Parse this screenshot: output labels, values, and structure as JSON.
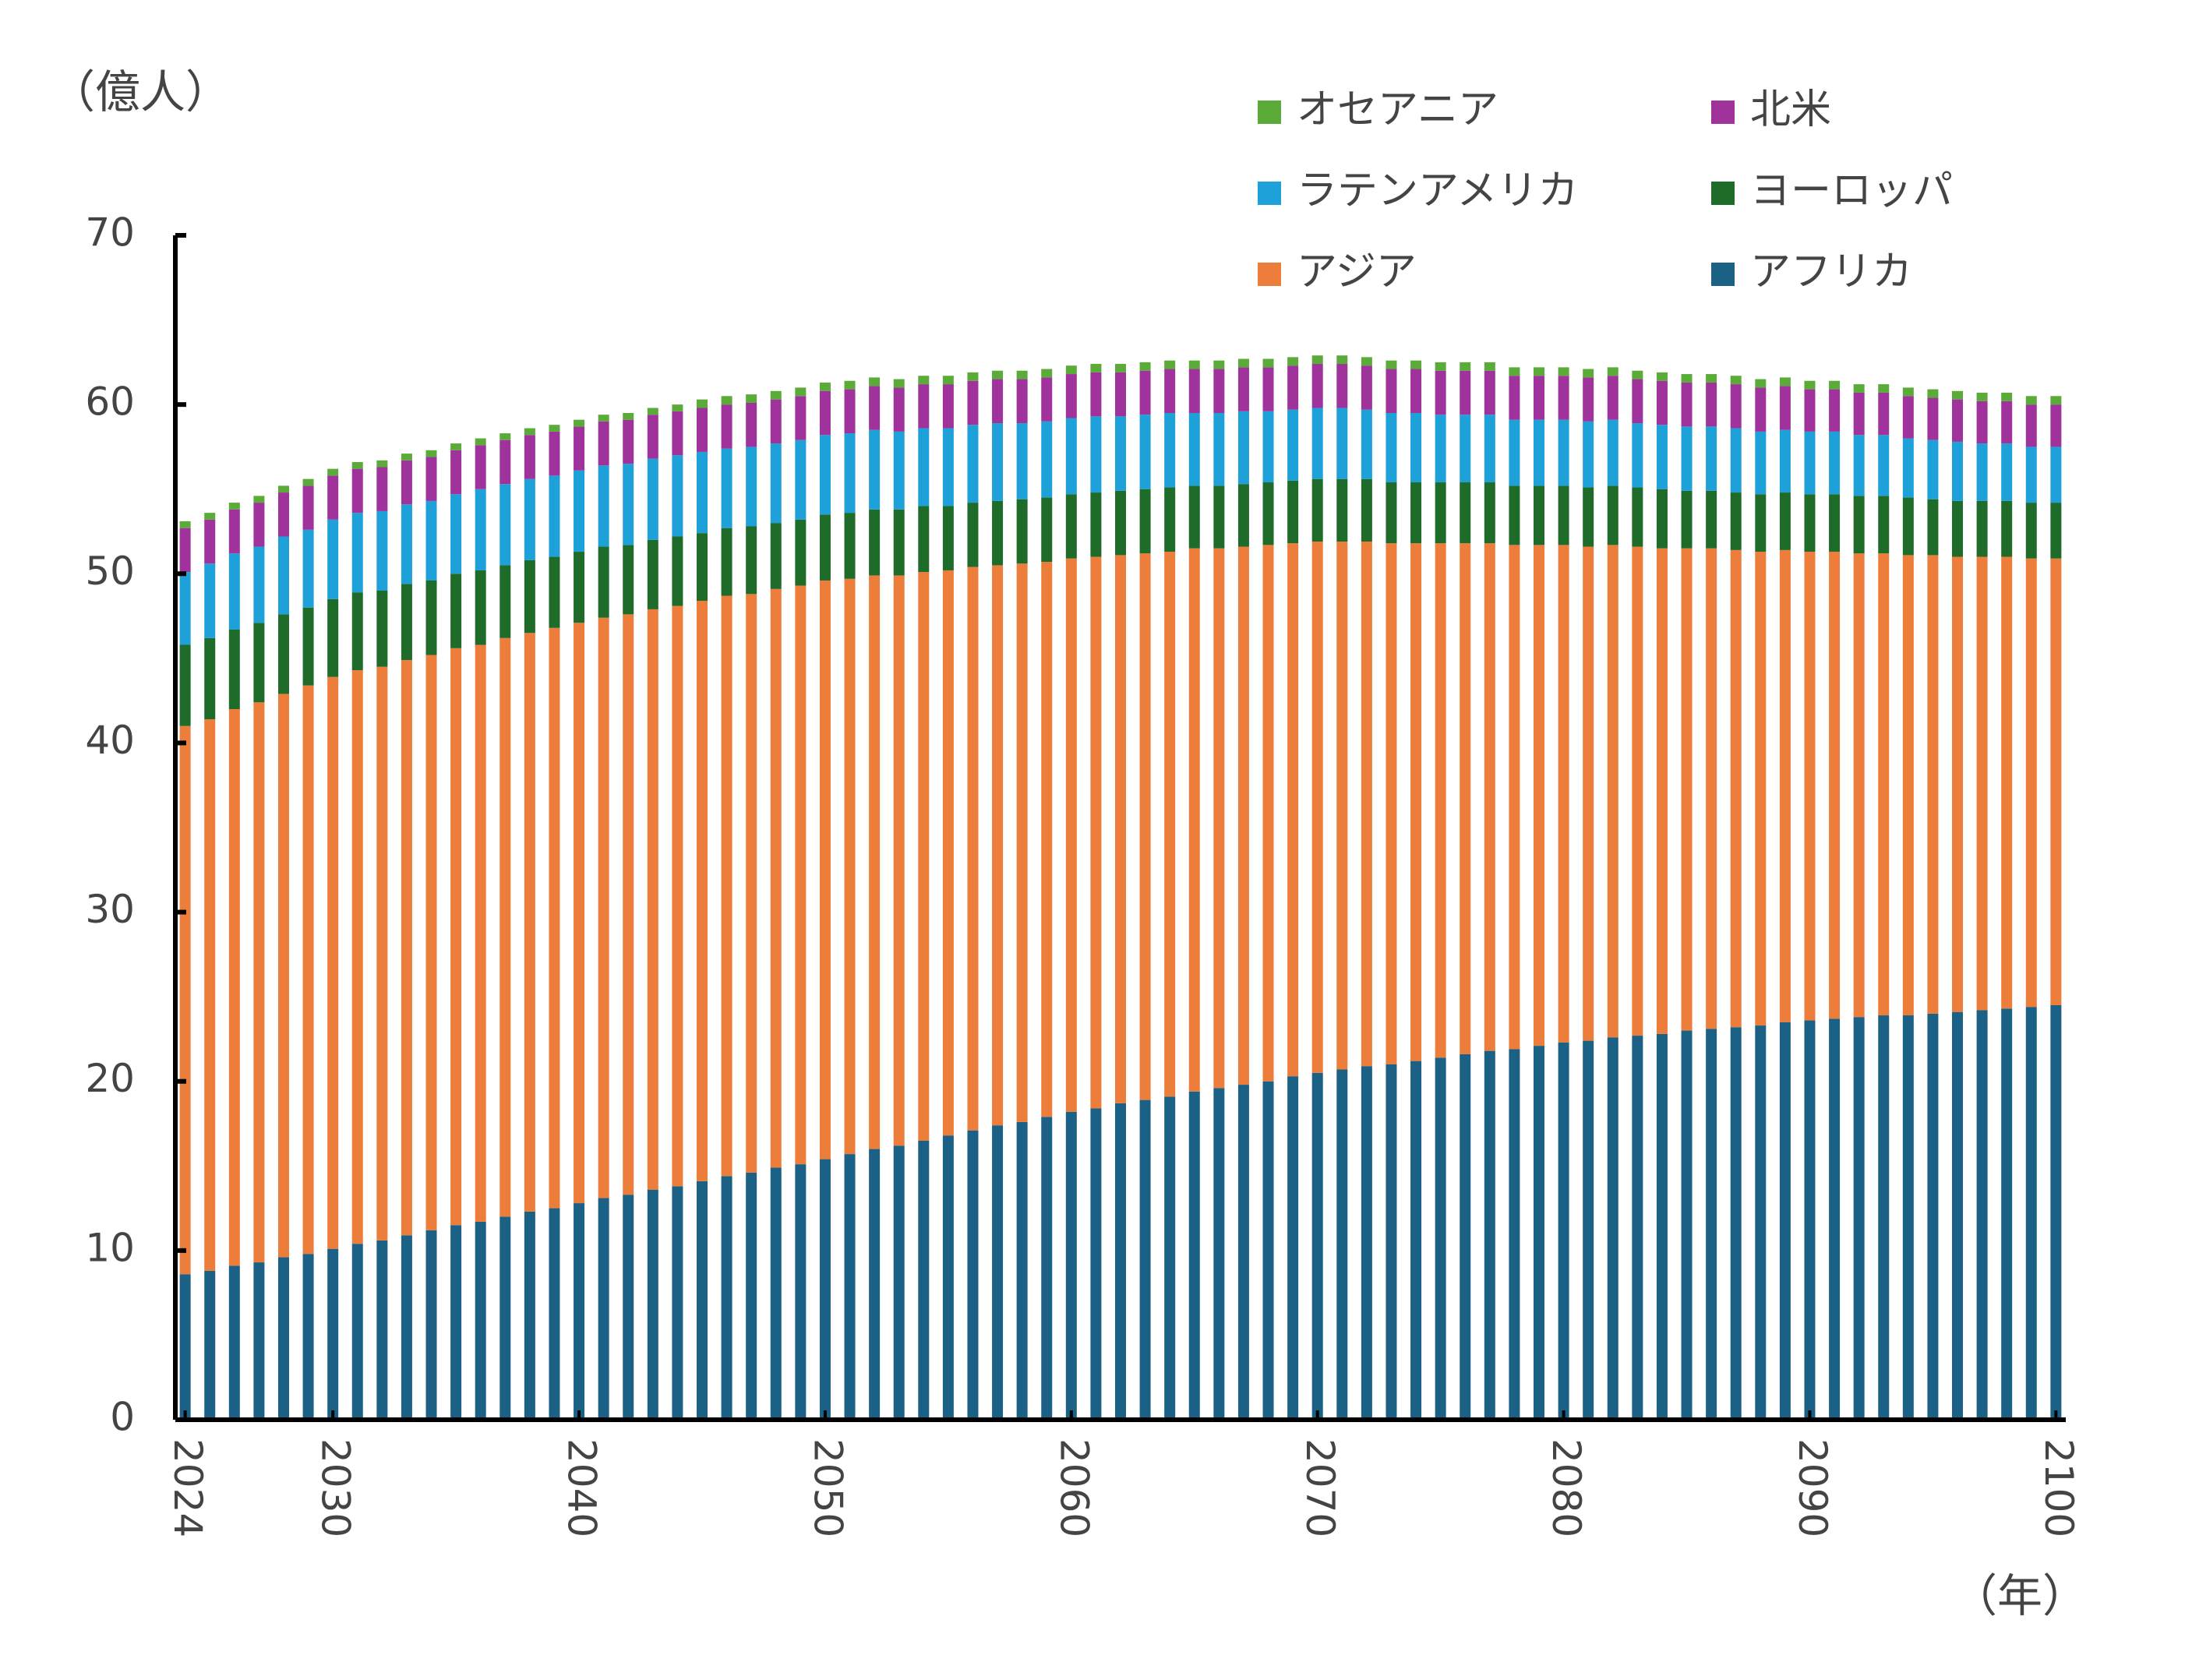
{
  "chart_data": {
    "type": "stacked_bar",
    "y_unit": "（億人）",
    "x_unit": "（年）",
    "x": [
      2024,
      2025,
      2026,
      2027,
      2028,
      2029,
      2030,
      2031,
      2032,
      2033,
      2034,
      2035,
      2036,
      2037,
      2038,
      2039,
      2040,
      2041,
      2042,
      2043,
      2044,
      2045,
      2046,
      2047,
      2048,
      2049,
      2050,
      2051,
      2052,
      2053,
      2054,
      2055,
      2056,
      2057,
      2058,
      2059,
      2060,
      2061,
      2062,
      2063,
      2064,
      2065,
      2066,
      2067,
      2068,
      2069,
      2070,
      2071,
      2072,
      2073,
      2074,
      2075,
      2076,
      2077,
      2078,
      2079,
      2080,
      2081,
      2082,
      2083,
      2084,
      2085,
      2086,
      2087,
      2088,
      2089,
      2090,
      2091,
      2092,
      2093,
      2094,
      2095,
      2096,
      2097,
      2098,
      2099,
      2100
    ],
    "xlim": [
      2023.6,
      2100.4
    ],
    "xticks": [
      2024,
      2030,
      2040,
      2050,
      2060,
      2070,
      2080,
      2090,
      2100
    ],
    "ylim": [
      0,
      70
    ],
    "yticks": [
      0,
      10,
      20,
      30,
      40,
      50,
      60,
      70
    ],
    "series": [
      {
        "name": "アフリカ",
        "color": "#1a6185",
        "values": [
          8.6,
          8.8,
          9.1,
          9.3,
          9.6,
          9.8,
          10.1,
          10.4,
          10.6,
          10.9,
          11.2,
          11.5,
          11.7,
          12.0,
          12.3,
          12.5,
          12.8,
          13.1,
          13.3,
          13.6,
          13.8,
          14.1,
          14.4,
          14.6,
          14.9,
          15.1,
          15.4,
          15.7,
          16.0,
          16.2,
          16.5,
          16.8,
          17.1,
          17.4,
          17.6,
          17.9,
          18.2,
          18.4,
          18.7,
          18.9,
          19.1,
          19.4,
          19.6,
          19.8,
          20.0,
          20.3,
          20.5,
          20.7,
          20.9,
          21.0,
          21.2,
          21.4,
          21.6,
          21.8,
          21.9,
          22.1,
          22.3,
          22.4,
          22.6,
          22.7,
          22.8,
          23.0,
          23.1,
          23.2,
          23.3,
          23.5,
          23.6,
          23.7,
          23.8,
          23.9,
          23.9,
          24.0,
          24.1,
          24.2,
          24.3,
          24.4,
          24.5
        ]
      },
      {
        "name": "アジア",
        "color": "#ed7d3a",
        "values": [
          32.4,
          32.6,
          32.9,
          33.1,
          33.3,
          33.6,
          33.8,
          33.9,
          33.9,
          34.0,
          34.0,
          34.1,
          34.1,
          34.2,
          34.2,
          34.3,
          34.3,
          34.3,
          34.3,
          34.3,
          34.3,
          34.3,
          34.3,
          34.2,
          34.2,
          34.2,
          34.2,
          34.0,
          33.9,
          33.7,
          33.6,
          33.4,
          33.3,
          33.1,
          33.0,
          32.8,
          32.7,
          32.6,
          32.4,
          32.3,
          32.2,
          32.1,
          31.9,
          31.8,
          31.7,
          31.5,
          31.4,
          31.2,
          31.0,
          30.8,
          30.6,
          30.4,
          30.2,
          30.0,
          29.8,
          29.6,
          29.4,
          29.2,
          29.1,
          28.9,
          28.7,
          28.5,
          28.4,
          28.2,
          28.0,
          27.9,
          27.7,
          27.6,
          27.4,
          27.3,
          27.2,
          27.1,
          26.9,
          26.8,
          26.7,
          26.5,
          26.4
        ]
      },
      {
        "name": "ヨーロッパ",
        "color": "#1e6b2a",
        "values": [
          4.8,
          4.8,
          4.7,
          4.7,
          4.7,
          4.6,
          4.6,
          4.6,
          4.5,
          4.5,
          4.4,
          4.4,
          4.4,
          4.3,
          4.3,
          4.2,
          4.2,
          4.2,
          4.1,
          4.1,
          4.1,
          4.0,
          4.0,
          4.0,
          3.9,
          3.9,
          3.9,
          3.9,
          3.9,
          3.9,
          3.9,
          3.8,
          3.8,
          3.8,
          3.8,
          3.8,
          3.8,
          3.8,
          3.8,
          3.8,
          3.8,
          3.7,
          3.7,
          3.7,
          3.7,
          3.7,
          3.7,
          3.7,
          3.7,
          3.6,
          3.6,
          3.6,
          3.6,
          3.6,
          3.5,
          3.5,
          3.5,
          3.5,
          3.5,
          3.5,
          3.5,
          3.4,
          3.4,
          3.4,
          3.4,
          3.4,
          3.4,
          3.4,
          3.4,
          3.4,
          3.4,
          3.3,
          3.3,
          3.3,
          3.3,
          3.3,
          3.3
        ]
      },
      {
        "name": "ラテンアメリカ",
        "color": "#1ea0d8",
        "values": [
          4.3,
          4.4,
          4.5,
          4.5,
          4.6,
          4.6,
          4.7,
          4.7,
          4.7,
          4.7,
          4.7,
          4.7,
          4.8,
          4.8,
          4.8,
          4.8,
          4.8,
          4.8,
          4.8,
          4.8,
          4.8,
          4.8,
          4.7,
          4.7,
          4.7,
          4.7,
          4.7,
          4.7,
          4.7,
          4.6,
          4.6,
          4.6,
          4.6,
          4.6,
          4.5,
          4.5,
          4.5,
          4.5,
          4.4,
          4.4,
          4.4,
          4.3,
          4.3,
          4.3,
          4.2,
          4.2,
          4.2,
          4.2,
          4.1,
          4.1,
          4.1,
          4.0,
          4.0,
          4.0,
          3.9,
          3.9,
          3.9,
          3.9,
          3.9,
          3.8,
          3.8,
          3.8,
          3.8,
          3.8,
          3.7,
          3.7,
          3.7,
          3.7,
          3.6,
          3.6,
          3.5,
          3.5,
          3.5,
          3.4,
          3.4,
          3.3,
          3.3
        ]
      },
      {
        "name": "北米",
        "color": "#a0329c",
        "values": [
          2.6,
          2.6,
          2.6,
          2.6,
          2.6,
          2.6,
          2.6,
          2.6,
          2.6,
          2.6,
          2.6,
          2.6,
          2.6,
          2.6,
          2.6,
          2.6,
          2.6,
          2.6,
          2.6,
          2.6,
          2.6,
          2.6,
          2.6,
          2.6,
          2.6,
          2.6,
          2.6,
          2.6,
          2.6,
          2.6,
          2.6,
          2.6,
          2.6,
          2.6,
          2.6,
          2.6,
          2.6,
          2.6,
          2.6,
          2.6,
          2.6,
          2.6,
          2.6,
          2.6,
          2.6,
          2.6,
          2.6,
          2.6,
          2.6,
          2.6,
          2.6,
          2.6,
          2.6,
          2.6,
          2.6,
          2.6,
          2.6,
          2.6,
          2.6,
          2.6,
          2.6,
          2.6,
          2.6,
          2.6,
          2.6,
          2.6,
          2.5,
          2.5,
          2.5,
          2.5,
          2.5,
          2.5,
          2.5,
          2.5,
          2.5,
          2.5,
          2.5
        ]
      },
      {
        "name": "オセアニア",
        "color": "#5aab38",
        "values": [
          0.4,
          0.4,
          0.4,
          0.4,
          0.4,
          0.4,
          0.4,
          0.4,
          0.4,
          0.4,
          0.4,
          0.4,
          0.4,
          0.4,
          0.4,
          0.4,
          0.4,
          0.4,
          0.4,
          0.4,
          0.4,
          0.5,
          0.5,
          0.5,
          0.5,
          0.5,
          0.5,
          0.5,
          0.5,
          0.5,
          0.5,
          0.5,
          0.5,
          0.5,
          0.5,
          0.5,
          0.5,
          0.5,
          0.5,
          0.5,
          0.5,
          0.5,
          0.5,
          0.5,
          0.5,
          0.5,
          0.5,
          0.5,
          0.5,
          0.5,
          0.5,
          0.5,
          0.5,
          0.5,
          0.5,
          0.5,
          0.5,
          0.5,
          0.5,
          0.5,
          0.5,
          0.5,
          0.5,
          0.5,
          0.5,
          0.5,
          0.5,
          0.5,
          0.5,
          0.5,
          0.5,
          0.5,
          0.5,
          0.5,
          0.5,
          0.5,
          0.5
        ]
      }
    ]
  }
}
